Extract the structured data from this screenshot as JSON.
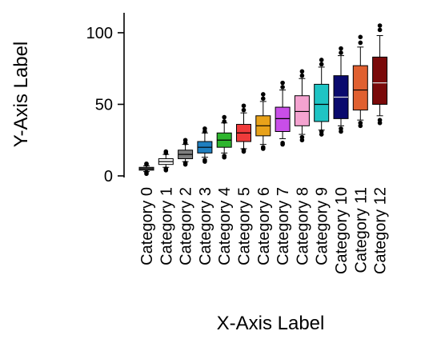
{
  "chart_data": {
    "type": "boxplot",
    "xlabel": "X-Axis Label",
    "ylabel": "Y-Axis Label",
    "ylim": [
      0,
      105
    ],
    "yticks": [
      0,
      50,
      100
    ],
    "grid": false,
    "categories": [
      "Category 0",
      "Category 1",
      "Category 2",
      "Category 3",
      "Category 4",
      "Category 5",
      "Category 6",
      "Category 7",
      "Category 8",
      "Category 9",
      "Category 10",
      "Category 11",
      "Category 12"
    ],
    "colors": [
      "#5a5a5a",
      "#ffffff",
      "#808080",
      "#1f7fc0",
      "#2db52d",
      "#ef3b3b",
      "#e8a21a",
      "#c84ee8",
      "#f4a3d0",
      "#1fc4c4",
      "#0a0a6e",
      "#e06030",
      "#7a0a0a"
    ],
    "boxes": [
      {
        "min": 3,
        "q1": 4,
        "median": 5,
        "q3": 6,
        "max": 7,
        "outliers": [
          1.5,
          2.5,
          8,
          8.5
        ]
      },
      {
        "min": 6,
        "q1": 8,
        "median": 10,
        "q3": 12,
        "max": 15,
        "outliers": [
          4,
          5,
          16,
          17
        ]
      },
      {
        "min": 10,
        "q1": 12,
        "median": 15,
        "q3": 18,
        "max": 22,
        "outliers": [
          8,
          9,
          23,
          25
        ]
      },
      {
        "min": 13,
        "q1": 16,
        "median": 20,
        "q3": 24,
        "max": 30,
        "outliers": [
          10,
          11,
          31,
          33
        ]
      },
      {
        "min": 16,
        "q1": 20,
        "median": 25,
        "q3": 30,
        "max": 37,
        "outliers": [
          13,
          14,
          38,
          41
        ]
      },
      {
        "min": 19,
        "q1": 24,
        "median": 30,
        "q3": 36,
        "max": 44,
        "outliers": [
          17,
          18,
          46,
          49
        ]
      },
      {
        "min": 22,
        "q1": 28,
        "median": 35,
        "q3": 42,
        "max": 52,
        "outliers": [
          19,
          20,
          54,
          57
        ]
      },
      {
        "min": 26,
        "q1": 31,
        "median": 40,
        "q3": 48,
        "max": 60,
        "outliers": [
          22,
          23,
          62,
          65
        ]
      },
      {
        "min": 29,
        "q1": 35,
        "median": 45,
        "q3": 56,
        "max": 68,
        "outliers": [
          25,
          27,
          70,
          73
        ]
      },
      {
        "min": 32,
        "q1": 38,
        "median": 50,
        "q3": 64,
        "max": 76,
        "outliers": [
          29,
          31,
          78,
          81
        ]
      },
      {
        "min": 35,
        "q1": 40,
        "median": 55,
        "q3": 70,
        "max": 84,
        "outliers": [
          31,
          33,
          86,
          89
        ]
      },
      {
        "min": 39,
        "q1": 46,
        "median": 60,
        "q3": 77,
        "max": 90,
        "outliers": [
          35,
          37,
          93,
          97
        ]
      },
      {
        "min": 42,
        "q1": 50,
        "median": 65,
        "q3": 83,
        "max": 98,
        "outliers": [
          37,
          39,
          102,
          105
        ]
      }
    ]
  }
}
